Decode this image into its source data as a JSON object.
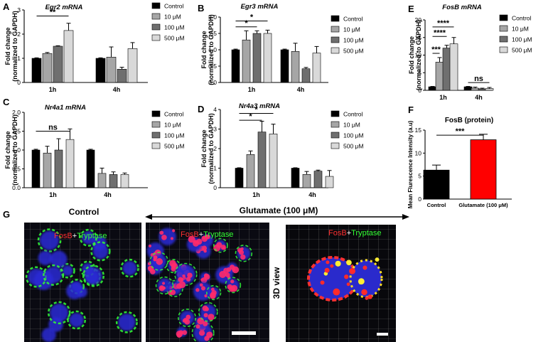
{
  "colors": {
    "control": "#000000",
    "c10": "#a6a6a6",
    "c100": "#6f6f6f",
    "c500": "#d9d9d9",
    "glutamate": "#ff0000",
    "fosb_stain": "#ff3030",
    "tryptase_stain": "#33ff33"
  },
  "chart_data": [
    {
      "panel": "A",
      "type": "bar",
      "title": "Egr2 mRNA",
      "ylabel": "Fold change\n(normalized to GAPDH)",
      "ylim": [
        0,
        3
      ],
      "yticks": [
        0,
        1,
        2,
        3
      ],
      "categories": [
        "1h",
        "4h"
      ],
      "series": [
        {
          "name": "Control",
          "values": [
            1.0,
            1.0
          ],
          "err": [
            0.02,
            0.02
          ]
        },
        {
          "name": "10 μM",
          "values": [
            1.2,
            1.05
          ],
          "err": [
            0.04,
            0.42
          ]
        },
        {
          "name": "100 μM",
          "values": [
            1.5,
            0.55
          ],
          "err": [
            0.02,
            0.08
          ]
        },
        {
          "name": "500 μM",
          "values": [
            2.15,
            1.4
          ],
          "err": [
            0.3,
            0.25
          ]
        }
      ],
      "annotations": [
        {
          "text": "**",
          "from": [
            0,
            0
          ],
          "to": [
            0,
            3
          ],
          "level": 2.75
        }
      ],
      "legend": "right"
    },
    {
      "panel": "B",
      "type": "bar",
      "title": "Egr3 mRNA",
      "ylabel": "Fold change\n(normalized to GAPDH)",
      "ylim": [
        0,
        2
      ],
      "yticks": [
        0.0,
        0.5,
        1.0,
        1.5,
        2.0
      ],
      "categories": [
        "1h",
        "4h"
      ],
      "series": [
        {
          "name": "Control",
          "values": [
            1.0,
            1.0
          ],
          "err": [
            0.02,
            0.02
          ]
        },
        {
          "name": "10 μM",
          "values": [
            1.3,
            0.95
          ],
          "err": [
            0.28,
            0.25
          ]
        },
        {
          "name": "100 μM",
          "values": [
            1.5,
            0.42
          ],
          "err": [
            0.08,
            0.04
          ]
        },
        {
          "name": "500 μM",
          "values": [
            1.5,
            0.9
          ],
          "err": [
            0.1,
            0.2
          ]
        }
      ],
      "annotations": [
        {
          "text": "*",
          "from": [
            0,
            0
          ],
          "to": [
            0,
            3
          ],
          "level": 1.88
        },
        {
          "text": "*",
          "from": [
            0,
            0
          ],
          "to": [
            0,
            2
          ],
          "level": 1.7
        }
      ],
      "legend": "right"
    },
    {
      "panel": "C",
      "type": "bar",
      "title": "Nr4a1 mRNA",
      "ylabel": "Fold change\n(normalized to GAPDH)",
      "ylim": [
        0,
        2
      ],
      "yticks": [
        0.0,
        0.5,
        1.0,
        1.5,
        2.0
      ],
      "categories": [
        "1h",
        "4h"
      ],
      "series": [
        {
          "name": "Control",
          "values": [
            1.0,
            1.0
          ],
          "err": [
            0.02,
            0.02
          ]
        },
        {
          "name": "10 μM",
          "values": [
            0.92,
            0.38
          ],
          "err": [
            0.18,
            0.14
          ]
        },
        {
          "name": "100 μM",
          "values": [
            1.0,
            0.35
          ],
          "err": [
            0.3,
            0.07
          ]
        },
        {
          "name": "500 μM",
          "values": [
            1.28,
            0.35
          ],
          "err": [
            0.28,
            0.04
          ]
        }
      ],
      "annotations": [
        {
          "text": "ns",
          "from": [
            0,
            0
          ],
          "to": [
            0,
            3
          ],
          "level": 1.5
        }
      ],
      "legend": "right"
    },
    {
      "panel": "D",
      "type": "bar",
      "title": "Nr4a3 mRNA",
      "ylabel": "Fold change\n(normalized to GAPDH)",
      "ylim": [
        0,
        4
      ],
      "yticks": [
        0,
        1,
        2,
        3,
        4
      ],
      "categories": [
        "1h",
        "4h"
      ],
      "series": [
        {
          "name": "Control",
          "values": [
            1.0,
            1.0
          ],
          "err": [
            0.02,
            0.02
          ]
        },
        {
          "name": "10 μM",
          "values": [
            1.7,
            0.68
          ],
          "err": [
            0.18,
            0.15
          ]
        },
        {
          "name": "100 μM",
          "values": [
            2.85,
            0.85
          ],
          "err": [
            0.55,
            0.05
          ]
        },
        {
          "name": "500 μM",
          "values": [
            2.75,
            0.58
          ],
          "err": [
            0.5,
            0.3
          ]
        }
      ],
      "annotations": [
        {
          "text": "*",
          "from": [
            0,
            0
          ],
          "to": [
            0,
            3
          ],
          "level": 3.8
        },
        {
          "text": "*",
          "from": [
            0,
            0
          ],
          "to": [
            0,
            2
          ],
          "level": 3.45
        }
      ],
      "legend": "right"
    },
    {
      "panel": "E",
      "type": "bar",
      "title": "FosB mRNA",
      "ylabel": "Fold change\n(normalized to GAPDH)",
      "ylim": [
        0,
        20
      ],
      "yticks": [
        0,
        5,
        10,
        15,
        20
      ],
      "categories": [
        "1h",
        "4h"
      ],
      "series": [
        {
          "name": "Control",
          "values": [
            1.0,
            1.0
          ],
          "err": [
            0.1,
            0.1
          ]
        },
        {
          "name": "10 μM",
          "values": [
            8.0,
            0.6
          ],
          "err": [
            1.3,
            0.3
          ]
        },
        {
          "name": "100 μM",
          "values": [
            12.0,
            0.4
          ],
          "err": [
            0.8,
            0.2
          ]
        },
        {
          "name": "500 μM",
          "values": [
            13.2,
            0.5
          ],
          "err": [
            1.8,
            0.3
          ]
        }
      ],
      "annotations": [
        {
          "text": "****",
          "from": [
            0,
            0
          ],
          "to": [
            0,
            3
          ],
          "level": 18.0
        },
        {
          "text": "****",
          "from": [
            0,
            0
          ],
          "to": [
            0,
            2
          ],
          "level": 15.3
        },
        {
          "text": "***",
          "from": [
            0,
            0
          ],
          "to": [
            0,
            1
          ],
          "level": 10.5
        },
        {
          "text": "ns",
          "from": [
            1,
            0
          ],
          "to": [
            1,
            3
          ],
          "level": 2.2
        }
      ],
      "legend": "right"
    },
    {
      "panel": "F",
      "type": "bar",
      "title": "FosB (protein)",
      "ylabel": "Mean Flurescence Intensity (a.u)",
      "ylim": [
        0,
        15
      ],
      "yticks": [
        0,
        5,
        10,
        15
      ],
      "categories": [
        "Control",
        "Glutamate (100 μM)"
      ],
      "values": [
        6.3,
        12.9
      ],
      "err": [
        1.1,
        1.2
      ],
      "annotations": [
        {
          "text": "***",
          "from": 0,
          "to": 1,
          "level": 13.9
        }
      ]
    }
  ],
  "micrographs": {
    "panel_label": "G",
    "control_label": "Control",
    "glutamate_label": "Glutamate (100 μM)",
    "view_label": "3D view",
    "fosb_label": "FosB",
    "plus": "+",
    "tryptase_label": "Tryptase"
  }
}
